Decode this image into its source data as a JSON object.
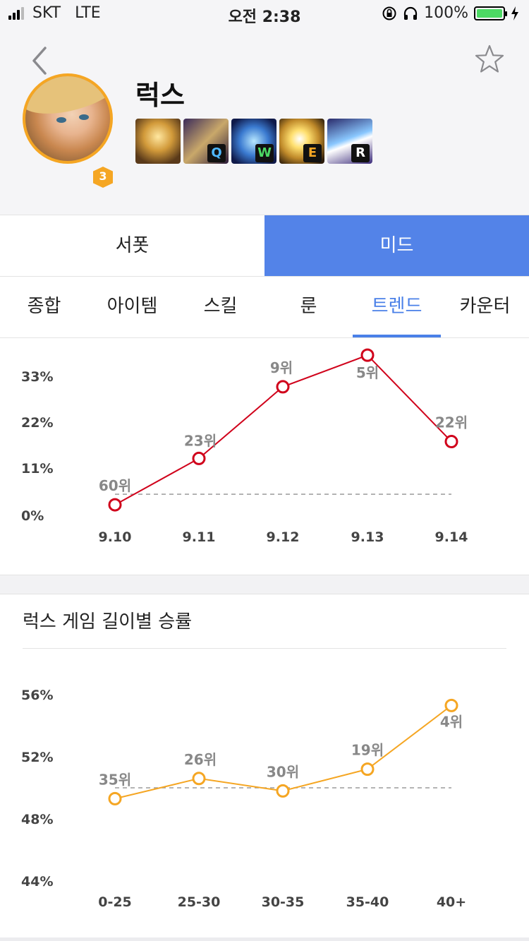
{
  "status": {
    "carrier": "SKT",
    "network": "LTE",
    "time": "오전 2:38",
    "battery": "100%"
  },
  "header": {
    "champion": "럭스",
    "level": "3",
    "skills": [
      {
        "key": "",
        "icon": "passive-skill-icon"
      },
      {
        "key": "Q",
        "icon": "q-skill-icon"
      },
      {
        "key": "W",
        "icon": "w-skill-icon"
      },
      {
        "key": "E",
        "icon": "e-skill-icon"
      },
      {
        "key": "R",
        "icon": "r-skill-icon"
      }
    ]
  },
  "roles": [
    {
      "label": "서폿",
      "active": false
    },
    {
      "label": "미드",
      "active": true
    }
  ],
  "tabs": [
    {
      "label": "종합"
    },
    {
      "label": "아이템"
    },
    {
      "label": "스킬"
    },
    {
      "label": "룬"
    },
    {
      "label": "트렌드",
      "active": true
    },
    {
      "label": "카운터"
    }
  ],
  "colors": {
    "accent": "#5383e8",
    "tab_active": "#4a80e8",
    "trend_line": "#d0021b",
    "length_line": "#f5a623"
  },
  "section_title": "럭스 게임 길이별 승률",
  "chart_data": [
    {
      "type": "line",
      "categories": [
        "9.10",
        "9.11",
        "9.12",
        "9.13",
        "9.14"
      ],
      "values": [
        2.5,
        13.5,
        30.5,
        38,
        17.5
      ],
      "ranks": [
        "60위",
        "23위",
        "9위",
        "5위",
        "22위"
      ],
      "yticks": [
        "33%",
        "22%",
        "11%",
        "0%"
      ],
      "ylim": [
        0,
        33
      ],
      "reference": 5,
      "color": "#d0021b"
    },
    {
      "type": "line",
      "categories": [
        "0-25",
        "25-30",
        "30-35",
        "35-40",
        "40+"
      ],
      "values": [
        49.3,
        50.6,
        49.8,
        51.2,
        55.3
      ],
      "ranks": [
        "35위",
        "26위",
        "30위",
        "19위",
        "4위"
      ],
      "yticks": [
        "56%",
        "52%",
        "48%",
        "44%"
      ],
      "ylim": [
        44,
        56
      ],
      "reference": 50,
      "color": "#f5a623"
    }
  ]
}
